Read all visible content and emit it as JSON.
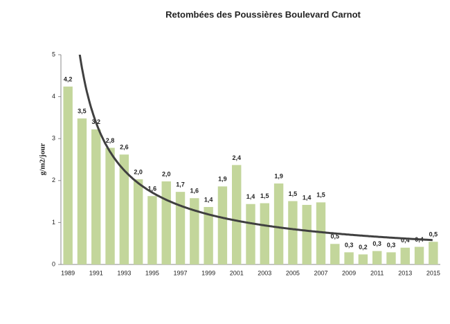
{
  "chart_data": {
    "type": "bar",
    "title": "Retombées des  Poussières Boulevard Carnot",
    "y_label": "g/m2/jour",
    "categories": [
      "1989",
      null,
      "1991",
      null,
      "1993",
      null,
      "1995",
      null,
      "1997",
      null,
      "1999",
      null,
      "2001",
      null,
      "2003",
      null,
      "2005",
      null,
      "2007",
      null,
      "2009",
      null,
      "2011",
      null,
      "2013",
      null,
      "2015"
    ],
    "values": [
      4.24,
      3.48,
      3.22,
      2.78,
      2.62,
      2.03,
      1.63,
      1.98,
      1.73,
      1.58,
      1.37,
      1.86,
      2.37,
      1.44,
      1.46,
      1.93,
      1.51,
      1.42,
      1.48,
      0.49,
      0.29,
      0.24,
      0.32,
      0.29,
      0.4,
      0.42,
      0.54
    ],
    "value_labels": [
      "4,2",
      "3,5",
      "3,2",
      "2,8",
      "2,6",
      "2,0",
      "1,6",
      "2,0",
      "1,7",
      "1,6",
      "1,4",
      "1,9",
      "2,4",
      "1,4",
      "1,5",
      "1,9",
      "1,5",
      "1,4",
      "1,5",
      "0,5",
      "0,3",
      "0,2",
      "0,3",
      "0,3",
      "0,4",
      "0,4",
      "0,5"
    ],
    "color": "#c3d69b",
    "trendline": "power",
    "trendline_color": "#404040",
    "ylim": [
      0,
      5
    ],
    "yticks": [
      0,
      1,
      2,
      3,
      4,
      5
    ],
    "grid": false
  }
}
